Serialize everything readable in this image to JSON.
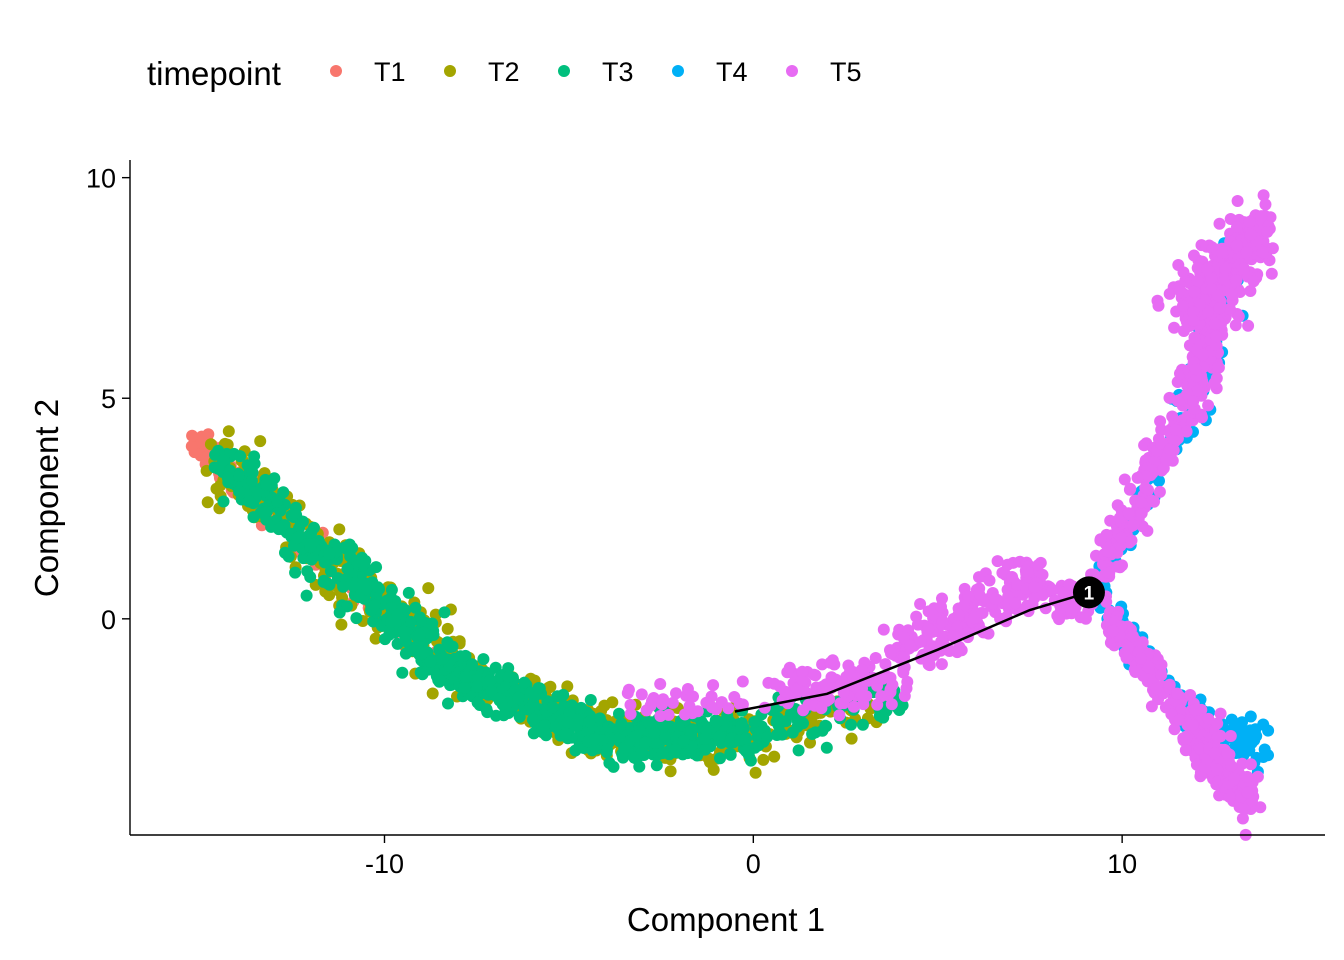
{
  "chart_data": {
    "type": "scatter",
    "xlabel": "Component 1",
    "ylabel": "Component 2",
    "xlim": [
      -16.9,
      15.5
    ],
    "ylim": [
      -4.9,
      10.4
    ],
    "x_ticks": [
      {
        "value": -10,
        "label": "-10"
      },
      {
        "value": 0,
        "label": "0"
      },
      {
        "value": 10,
        "label": "10"
      }
    ],
    "y_ticks": [
      {
        "value": 0,
        "label": "0"
      },
      {
        "value": 5,
        "label": "5"
      },
      {
        "value": 10,
        "label": "10"
      }
    ],
    "legend": {
      "title": "timepoint",
      "position": "top",
      "entries": [
        "T1",
        "T2",
        "T3",
        "T4",
        "T5"
      ]
    },
    "series": [
      {
        "name": "T1",
        "color": "#F8766D",
        "segments": [
          {
            "from": [
              -15.3,
              4.2
            ],
            "to": [
              -13.5,
              2.8
            ],
            "n": 60,
            "spread": 0.2
          },
          {
            "from": [
              -13.5,
              2.8
            ],
            "to": [
              -10.0,
              0.2
            ],
            "n": 50,
            "spread": 0.25
          },
          {
            "from": [
              -10.0,
              0.2
            ],
            "to": [
              -8.0,
              -1.3
            ],
            "n": 30,
            "spread": 0.2
          }
        ]
      },
      {
        "name": "T2",
        "color": "#A3A500",
        "segments": [
          {
            "from": [
              -14.5,
              3.5
            ],
            "to": [
              -12.0,
              1.8
            ],
            "n": 80,
            "spread": 0.35
          },
          {
            "from": [
              -12.0,
              1.8
            ],
            "to": [
              -8.0,
              -1.2
            ],
            "n": 150,
            "spread": 0.35
          },
          {
            "from": [
              -8.0,
              -1.2
            ],
            "to": [
              -4.0,
              -2.6
            ],
            "n": 150,
            "spread": 0.3
          },
          {
            "from": [
              -4.0,
              -2.6
            ],
            "to": [
              0.0,
              -2.6
            ],
            "n": 130,
            "spread": 0.3
          },
          {
            "from": [
              0.0,
              -2.6
            ],
            "to": [
              3.0,
              -2.0
            ],
            "n": 50,
            "spread": 0.3
          }
        ]
      },
      {
        "name": "T3",
        "color": "#00BF7D",
        "segments": [
          {
            "from": [
              -14.5,
              3.6
            ],
            "to": [
              -12.0,
              1.7
            ],
            "n": 110,
            "spread": 0.3
          },
          {
            "from": [
              -12.0,
              1.7
            ],
            "to": [
              -8.0,
              -1.3
            ],
            "n": 220,
            "spread": 0.3
          },
          {
            "from": [
              -8.0,
              -1.3
            ],
            "to": [
              -4.0,
              -2.7
            ],
            "n": 250,
            "spread": 0.25
          },
          {
            "from": [
              -4.0,
              -2.7
            ],
            "to": [
              0.0,
              -2.6
            ],
            "n": 230,
            "spread": 0.25
          },
          {
            "from": [
              0.0,
              -2.6
            ],
            "to": [
              3.8,
              -1.6
            ],
            "n": 90,
            "spread": 0.3
          }
        ]
      },
      {
        "name": "T4",
        "color": "#00B0F6",
        "segments": [
          {
            "from": [
              9.5,
              1.2
            ],
            "to": [
              11.8,
              4.5
            ],
            "n": 40,
            "spread": 0.2
          },
          {
            "from": [
              11.8,
              4.5
            ],
            "to": [
              12.8,
              8.3
            ],
            "n": 70,
            "spread": 0.35
          },
          {
            "from": [
              9.5,
              0.3
            ],
            "to": [
              11.8,
              -2.2
            ],
            "n": 70,
            "spread": 0.18
          },
          {
            "from": [
              11.8,
              -2.2
            ],
            "to": [
              13.8,
              -3.0
            ],
            "n": 80,
            "spread": 0.3
          }
        ]
      },
      {
        "name": "T5",
        "color": "#E76BF3",
        "segments": [
          {
            "from": [
              -3.5,
              -1.9
            ],
            "to": [
              0.0,
              -1.9
            ],
            "n": 35,
            "spread": 0.2
          },
          {
            "from": [
              0.5,
              -1.7
            ],
            "to": [
              4.0,
              -1.3
            ],
            "n": 100,
            "spread": 0.3
          },
          {
            "from": [
              4.0,
              -0.7
            ],
            "to": [
              7.5,
              0.8
            ],
            "n": 160,
            "spread": 0.35
          },
          {
            "from": [
              7.3,
              0.9
            ],
            "to": [
              9.0,
              0.3
            ],
            "n": 70,
            "spread": 0.25
          },
          {
            "from": [
              9.4,
              1.0
            ],
            "to": [
              11.8,
              5.0
            ],
            "n": 150,
            "spread": 0.25
          },
          {
            "from": [
              11.8,
              5.0
            ],
            "to": [
              12.8,
              7.5
            ],
            "n": 180,
            "spread": 0.35
          },
          {
            "from": [
              11.6,
              7.0
            ],
            "to": [
              13.8,
              8.8
            ],
            "n": 250,
            "spread": 0.35
          },
          {
            "from": [
              9.4,
              0.3
            ],
            "to": [
              11.8,
              -2.4
            ],
            "n": 100,
            "spread": 0.2
          },
          {
            "from": [
              11.8,
              -2.4
            ],
            "to": [
              13.5,
              -4.1
            ],
            "n": 220,
            "spread": 0.3
          }
        ]
      }
    ],
    "trajectory": [
      [
        -0.5,
        -2.1
      ],
      [
        2.0,
        -1.7
      ],
      [
        5.0,
        -0.7
      ],
      [
        7.5,
        0.2
      ],
      [
        9.1,
        0.6
      ]
    ],
    "branch_point": {
      "x": 9.1,
      "y": 0.6,
      "label": "1"
    }
  }
}
